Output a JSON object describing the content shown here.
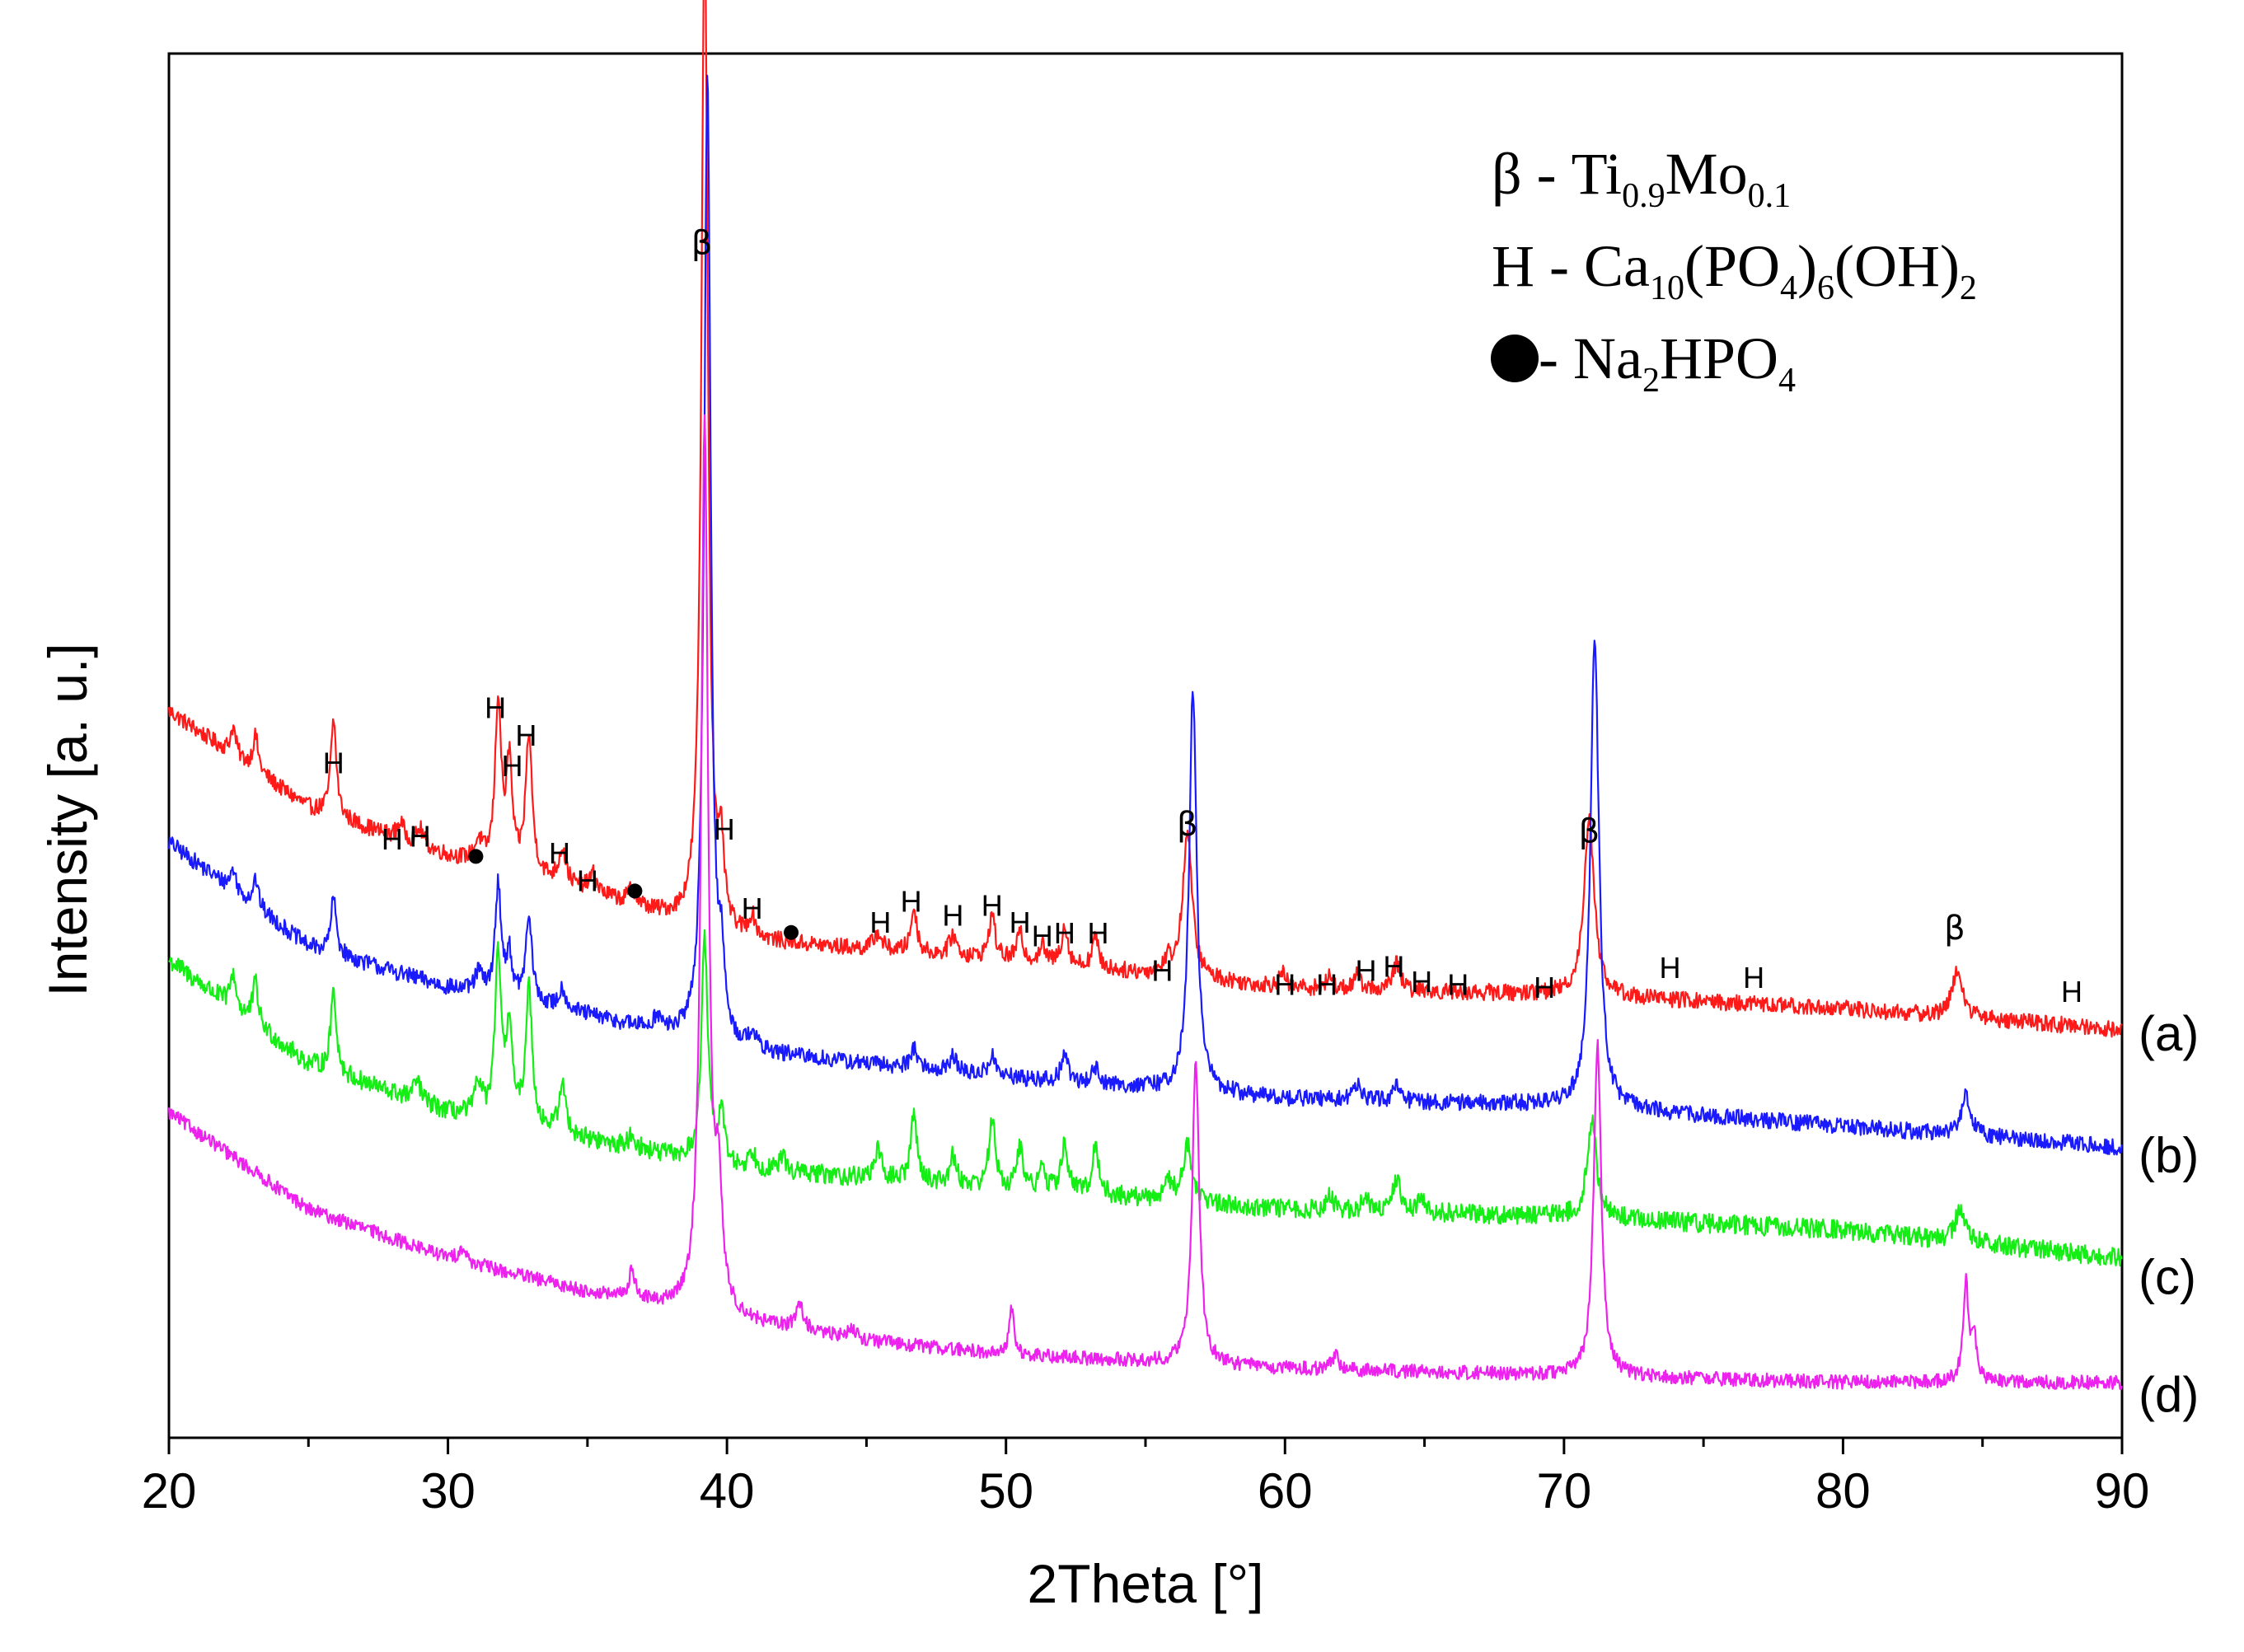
{
  "chart_data": {
    "type": "line",
    "title": "",
    "xlabel": "2Theta [°]",
    "ylabel": "Intensity [a. u.]",
    "xlim": [
      20,
      90
    ],
    "ylim": [
      0,
      1
    ],
    "x_ticks": [
      20,
      30,
      40,
      50,
      60,
      70,
      80,
      90
    ],
    "colors": {
      "a": "#ff1a1a",
      "b": "#1a1aff",
      "c": "#14ee14",
      "d": "#ee22ee"
    },
    "series": [
      {
        "name": "(a)",
        "key": "a",
        "color": "#ff1a1a",
        "baseline": [
          [
            20,
            0.525
          ],
          [
            25,
            0.455
          ],
          [
            30,
            0.42
          ],
          [
            35,
            0.395
          ],
          [
            40,
            0.36
          ],
          [
            50,
            0.345
          ],
          [
            60,
            0.325
          ],
          [
            70,
            0.32
          ],
          [
            80,
            0.31
          ],
          [
            90,
            0.295
          ]
        ],
        "peaks": [
          [
            22.3,
            0.02,
            0.12
          ],
          [
            23.1,
            0.025,
            0.12
          ],
          [
            25.9,
            0.07,
            0.12
          ],
          [
            28.3,
            0.012,
            0.15
          ],
          [
            29.0,
            0.012,
            0.15
          ],
          [
            31.1,
            0.015,
            0.15
          ],
          [
            31.8,
            0.12,
            0.13
          ],
          [
            32.2,
            0.075,
            0.12
          ],
          [
            32.9,
            0.1,
            0.14
          ],
          [
            34.1,
            0.025,
            0.15
          ],
          [
            35.2,
            0.012,
            0.15
          ],
          [
            36.6,
            0.012,
            0.15
          ],
          [
            39.2,
            0.73,
            0.14
          ],
          [
            39.8,
            0.05,
            0.12
          ],
          [
            40.9,
            0.015,
            0.15
          ],
          [
            45.4,
            0.012,
            0.18
          ],
          [
            46.7,
            0.032,
            0.13
          ],
          [
            48.1,
            0.015,
            0.15
          ],
          [
            49.5,
            0.032,
            0.13
          ],
          [
            50.5,
            0.02,
            0.13
          ],
          [
            51.3,
            0.012,
            0.14
          ],
          [
            52.1,
            0.028,
            0.14
          ],
          [
            53.2,
            0.022,
            0.14
          ],
          [
            55.8,
            0.01,
            0.15
          ],
          [
            56.5,
            0.105,
            0.2
          ],
          [
            59.9,
            0.01,
            0.15
          ],
          [
            61.6,
            0.008,
            0.15
          ],
          [
            62.6,
            0.01,
            0.15
          ],
          [
            64.0,
            0.02,
            0.15
          ],
          [
            70.9,
            0.13,
            0.22
          ],
          [
            84.1,
            0.035,
            0.22
          ]
        ],
        "noise": 0.006
      },
      {
        "name": "(b)",
        "key": "b",
        "color": "#1a1aff",
        "baseline": [
          [
            20,
            0.43
          ],
          [
            25,
            0.355
          ],
          [
            30,
            0.325
          ],
          [
            35,
            0.305
          ],
          [
            40,
            0.28
          ],
          [
            50,
            0.26
          ],
          [
            60,
            0.245
          ],
          [
            70,
            0.24
          ],
          [
            80,
            0.225
          ],
          [
            90,
            0.21
          ]
        ],
        "peaks": [
          [
            22.3,
            0.015,
            0.12
          ],
          [
            23.1,
            0.02,
            0.12
          ],
          [
            25.9,
            0.04,
            0.12
          ],
          [
            31.1,
            0.015,
            0.15
          ],
          [
            31.8,
            0.08,
            0.13
          ],
          [
            32.2,
            0.03,
            0.12
          ],
          [
            32.9,
            0.06,
            0.14
          ],
          [
            34.1,
            0.015,
            0.15
          ],
          [
            37.5,
            0.01,
            0.15
          ],
          [
            39.3,
            0.7,
            0.14
          ],
          [
            39.8,
            0.05,
            0.12
          ],
          [
            40.9,
            0.012,
            0.15
          ],
          [
            46.7,
            0.015,
            0.15
          ],
          [
            48.1,
            0.012,
            0.15
          ],
          [
            49.5,
            0.015,
            0.15
          ],
          [
            52.1,
            0.02,
            0.14
          ],
          [
            53.2,
            0.012,
            0.14
          ],
          [
            56.7,
            0.29,
            0.16
          ],
          [
            62.6,
            0.012,
            0.15
          ],
          [
            64.0,
            0.01,
            0.15
          ],
          [
            71.1,
            0.34,
            0.18
          ],
          [
            84.4,
            0.03,
            0.2
          ]
        ],
        "noise": 0.006
      },
      {
        "name": "(c)",
        "key": "c",
        "color": "#14ee14",
        "baseline": [
          [
            20,
            0.345
          ],
          [
            25,
            0.27
          ],
          [
            30,
            0.235
          ],
          [
            35,
            0.215
          ],
          [
            40,
            0.195
          ],
          [
            50,
            0.18
          ],
          [
            60,
            0.165
          ],
          [
            70,
            0.16
          ],
          [
            80,
            0.15
          ],
          [
            90,
            0.13
          ]
        ],
        "peaks": [
          [
            22.3,
            0.025,
            0.12
          ],
          [
            23.1,
            0.03,
            0.12
          ],
          [
            25.9,
            0.06,
            0.12
          ],
          [
            28.9,
            0.015,
            0.15
          ],
          [
            31.1,
            0.025,
            0.15
          ],
          [
            31.8,
            0.12,
            0.13
          ],
          [
            32.2,
            0.07,
            0.12
          ],
          [
            32.9,
            0.1,
            0.14
          ],
          [
            34.1,
            0.035,
            0.15
          ],
          [
            36.6,
            0.01,
            0.15
          ],
          [
            39.2,
            0.16,
            0.14
          ],
          [
            39.8,
            0.04,
            0.12
          ],
          [
            40.9,
            0.012,
            0.15
          ],
          [
            42.0,
            0.01,
            0.15
          ],
          [
            45.4,
            0.02,
            0.15
          ],
          [
            46.7,
            0.05,
            0.13
          ],
          [
            48.1,
            0.02,
            0.15
          ],
          [
            49.5,
            0.05,
            0.13
          ],
          [
            50.5,
            0.03,
            0.13
          ],
          [
            51.3,
            0.015,
            0.14
          ],
          [
            52.1,
            0.035,
            0.14
          ],
          [
            53.2,
            0.035,
            0.14
          ],
          [
            55.8,
            0.015,
            0.15
          ],
          [
            56.5,
            0.04,
            0.2
          ],
          [
            61.6,
            0.01,
            0.15
          ],
          [
            62.9,
            0.01,
            0.15
          ],
          [
            64.0,
            0.025,
            0.15
          ],
          [
            64.9,
            0.012,
            0.15
          ],
          [
            71.0,
            0.07,
            0.2
          ],
          [
            84.2,
            0.025,
            0.2
          ]
        ],
        "noise": 0.007
      },
      {
        "name": "(d)",
        "key": "d",
        "color": "#ee22ee",
        "baseline": [
          [
            20,
            0.235
          ],
          [
            25,
            0.165
          ],
          [
            30,
            0.13
          ],
          [
            35,
            0.105
          ],
          [
            40,
            0.085
          ],
          [
            45,
            0.07
          ],
          [
            50,
            0.06
          ],
          [
            60,
            0.05
          ],
          [
            70,
            0.045
          ],
          [
            80,
            0.04
          ],
          [
            90,
            0.04
          ]
        ],
        "peaks": [
          [
            30.5,
            0.01,
            0.15
          ],
          [
            36.6,
            0.02,
            0.15
          ],
          [
            39.2,
            0.64,
            0.15
          ],
          [
            39.7,
            0.08,
            0.15
          ],
          [
            42.6,
            0.02,
            0.15
          ],
          [
            44.5,
            0.008,
            0.15
          ],
          [
            50.2,
            0.035,
            0.1
          ],
          [
            56.8,
            0.22,
            0.15
          ],
          [
            61.8,
            0.01,
            0.15
          ],
          [
            71.2,
            0.24,
            0.16
          ],
          [
            84.4,
            0.07,
            0.12
          ],
          [
            84.7,
            0.03,
            0.12
          ]
        ],
        "noise": 0.005
      }
    ],
    "series_labels": [
      {
        "text": "(a)",
        "y": 0.293
      },
      {
        "text": "(b)",
        "y": 0.205
      },
      {
        "text": "(c)",
        "y": 0.117
      },
      {
        "text": "(d)",
        "y": 0.032
      }
    ],
    "annotations": [
      {
        "text": "β",
        "kind": "beta",
        "x": 39.1,
        "y": 0.855
      },
      {
        "text": "β",
        "kind": "beta",
        "x": 56.5,
        "y": 0.435
      },
      {
        "text": "β",
        "kind": "beta",
        "x": 70.9,
        "y": 0.43
      },
      {
        "text": "β",
        "kind": "beta",
        "x": 84.0,
        "y": 0.36
      },
      {
        "text": "H",
        "kind": "H",
        "x": 25.9,
        "y": 0.48
      },
      {
        "text": "H",
        "kind": "H",
        "x": 28.0,
        "y": 0.425
      },
      {
        "text": "H",
        "kind": "H",
        "x": 29.0,
        "y": 0.427
      },
      {
        "text": "H",
        "kind": "H",
        "x": 31.7,
        "y": 0.52
      },
      {
        "text": "H",
        "kind": "H",
        "x": 32.8,
        "y": 0.5
      },
      {
        "text": "H",
        "kind": "H",
        "x": 32.3,
        "y": 0.478
      },
      {
        "text": "H",
        "kind": "H",
        "x": 34.0,
        "y": 0.415
      },
      {
        "text": "H",
        "kind": "H",
        "x": 35.0,
        "y": 0.395
      },
      {
        "text": "H",
        "kind": "H",
        "x": 39.9,
        "y": 0.432
      },
      {
        "text": "H",
        "kind": "H",
        "x": 40.9,
        "y": 0.375
      },
      {
        "text": "H",
        "kind": "H",
        "x": 45.5,
        "y": 0.365
      },
      {
        "text": "H",
        "kind": "H",
        "x": 46.6,
        "y": 0.38
      },
      {
        "text": "H",
        "kind": "H",
        "x": 48.1,
        "y": 0.37
      },
      {
        "text": "H",
        "kind": "H",
        "x": 49.5,
        "y": 0.377
      },
      {
        "text": "H",
        "kind": "H",
        "x": 50.5,
        "y": 0.365
      },
      {
        "text": "H",
        "kind": "H",
        "x": 51.3,
        "y": 0.355
      },
      {
        "text": "H",
        "kind": "H",
        "x": 52.1,
        "y": 0.357
      },
      {
        "text": "H",
        "kind": "H",
        "x": 53.3,
        "y": 0.357
      },
      {
        "text": "H",
        "kind": "H",
        "x": 55.6,
        "y": 0.33
      },
      {
        "text": "H",
        "kind": "H",
        "x": 60.0,
        "y": 0.32
      },
      {
        "text": "H",
        "kind": "H",
        "x": 61.5,
        "y": 0.32
      },
      {
        "text": "H",
        "kind": "H",
        "x": 62.9,
        "y": 0.33
      },
      {
        "text": "H",
        "kind": "H",
        "x": 63.9,
        "y": 0.333
      },
      {
        "text": "H",
        "kind": "H",
        "x": 64.9,
        "y": 0.322
      },
      {
        "text": "H",
        "kind": "H",
        "x": 66.2,
        "y": 0.32
      },
      {
        "text": "H",
        "kind": "H",
        "x": 69.3,
        "y": 0.318
      },
      {
        "text": "H",
        "kind": "H",
        "x": 73.8,
        "y": 0.332
      },
      {
        "text": "H",
        "kind": "H",
        "x": 76.8,
        "y": 0.325
      },
      {
        "text": "H",
        "kind": "H",
        "x": 88.2,
        "y": 0.315
      },
      {
        "text": "●",
        "kind": "dot",
        "x": 31.0,
        "y": 0.42
      },
      {
        "text": "●",
        "kind": "dot",
        "x": 36.7,
        "y": 0.395
      },
      {
        "text": "●",
        "kind": "dot",
        "x": 42.3,
        "y": 0.365
      }
    ],
    "legend": {
      "position": "top-right",
      "entries": [
        {
          "symbol": "β",
          "dash": " - ",
          "parts": [
            [
              "Ti",
              "n"
            ],
            [
              "0.9",
              "sub"
            ],
            [
              "Mo",
              "n"
            ],
            [
              "0.1",
              "sub"
            ]
          ]
        },
        {
          "symbol": "H",
          "dash": " - ",
          "parts": [
            [
              "Ca",
              "n"
            ],
            [
              "10",
              "sub"
            ],
            [
              "(PO",
              "n"
            ],
            [
              "4",
              "sub"
            ],
            [
              ")",
              "n"
            ],
            [
              "6",
              "sub"
            ],
            [
              "(OH)",
              "n"
            ],
            [
              "2",
              "sub"
            ]
          ]
        },
        {
          "symbol": "●",
          "dash": " - ",
          "parts": [
            [
              "Na",
              "n"
            ],
            [
              "2",
              "sub"
            ],
            [
              "HPO",
              "n"
            ],
            [
              "4",
              "sub"
            ]
          ]
        }
      ]
    }
  }
}
